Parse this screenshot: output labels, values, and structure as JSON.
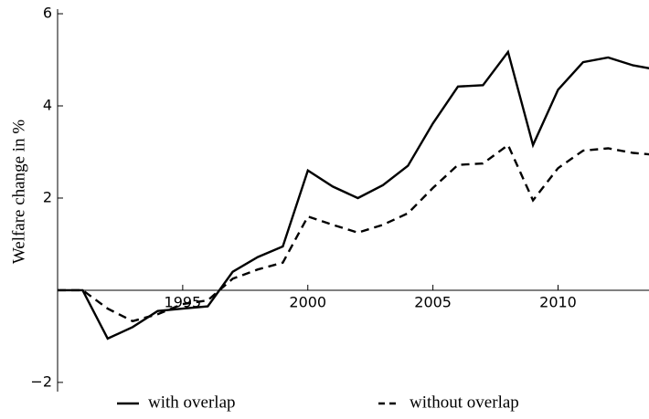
{
  "chart_data": {
    "type": "line",
    "y_label": "Welfare change in %",
    "x": [
      1990,
      1991,
      1992,
      1993,
      1994,
      1995,
      1996,
      1997,
      1998,
      1999,
      2000,
      2001,
      2002,
      2003,
      2004,
      2005,
      2006,
      2007,
      2008,
      2009,
      2010,
      2011,
      2012,
      2013,
      2014
    ],
    "series": [
      {
        "name": "with overlap",
        "color": "#000000",
        "line_style": "solid",
        "values": [
          0,
          0,
          -1.05,
          -0.8,
          -0.45,
          -0.4,
          -0.35,
          0.4,
          0.72,
          0.95,
          2.6,
          2.25,
          2.0,
          2.28,
          2.7,
          3.62,
          4.42,
          4.45,
          5.17,
          3.15,
          4.35,
          4.95,
          5.05,
          4.88,
          4.78
        ]
      },
      {
        "name": "without overlap",
        "color": "#000000",
        "line_style": "dashed",
        "values": [
          0,
          0,
          -0.4,
          -0.67,
          -0.52,
          -0.3,
          -0.22,
          0.25,
          0.45,
          0.6,
          1.6,
          1.42,
          1.25,
          1.42,
          1.67,
          2.22,
          2.72,
          2.75,
          3.15,
          1.95,
          2.65,
          3.03,
          3.08,
          2.98,
          2.93
        ]
      }
    ],
    "xlim": [
      1990,
      2014
    ],
    "xticks": [
      1995,
      2000,
      2005,
      2010
    ],
    "ylim": [
      -2.2,
      6.1
    ],
    "yticks": [
      6,
      4,
      2,
      {
        "value": -2,
        "label": "−2"
      }
    ],
    "legend": "bottom"
  }
}
